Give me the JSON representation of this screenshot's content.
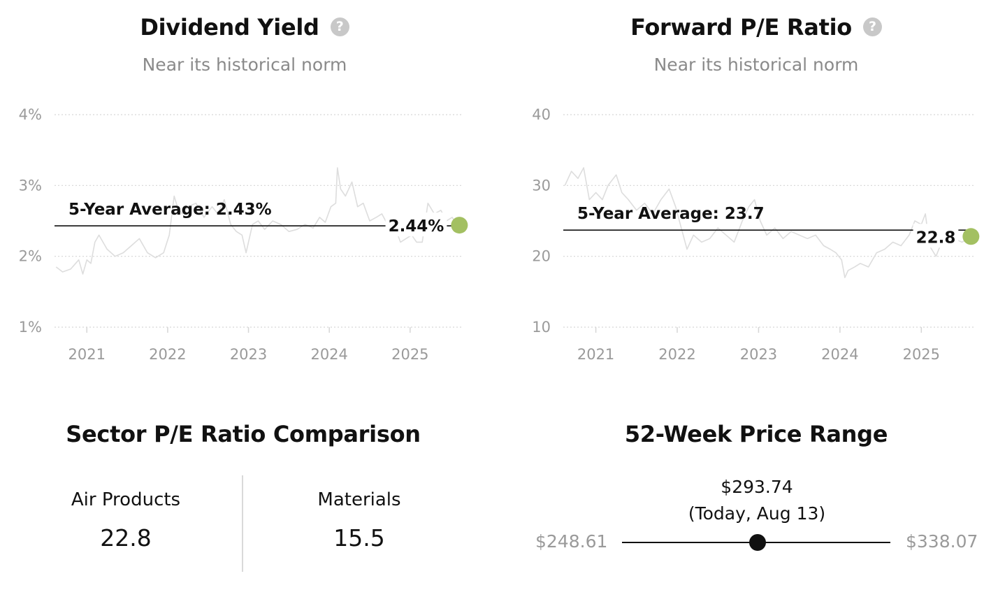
{
  "chart_data": [
    {
      "type": "line",
      "title": "Dividend Yield",
      "subtitle": "Near its historical norm",
      "y_ticks": [
        "1%",
        "2%",
        "3%",
        "4%"
      ],
      "ylim": [
        1,
        4
      ],
      "x_ticks": [
        "2021",
        "2022",
        "2023",
        "2024",
        "2025"
      ],
      "x_tick_values": [
        2021,
        2022,
        2023,
        2024,
        2025
      ],
      "xlim": [
        2020.6,
        2025.65
      ],
      "grid": true,
      "average": {
        "label": "5-Year Average: 2.43%",
        "value": 2.43
      },
      "current": {
        "label": "2.44%",
        "x": 2025.61,
        "value": 2.44
      },
      "series": [
        {
          "x": [
            2020.62,
            2020.7,
            2020.8,
            2020.9,
            2020.95,
            2021.0,
            2021.05,
            2021.1,
            2021.15,
            2021.25,
            2021.35,
            2021.45,
            2021.55,
            2021.65,
            2021.75,
            2021.85,
            2021.95,
            2022.02,
            2022.08,
            2022.12,
            2022.18,
            2022.25,
            2022.35,
            2022.45,
            2022.55,
            2022.62,
            2022.7,
            2022.78,
            2022.85,
            2022.92,
            2022.97,
            2023.05,
            2023.12,
            2023.2,
            2023.3,
            2023.4,
            2023.5,
            2023.6,
            2023.7,
            2023.8,
            2023.88,
            2023.95,
            2024.02,
            2024.08,
            2024.1,
            2024.14,
            2024.2,
            2024.28,
            2024.35,
            2024.42,
            2024.5,
            2024.58,
            2024.65,
            2024.72,
            2024.8,
            2024.88,
            2024.95,
            2025.02,
            2025.08,
            2025.15,
            2025.22,
            2025.3,
            2025.38,
            2025.45,
            2025.52,
            2025.58,
            2025.61
          ],
          "y": [
            1.85,
            1.78,
            1.82,
            1.95,
            1.75,
            1.95,
            1.9,
            2.2,
            2.3,
            2.1,
            2.0,
            2.05,
            2.15,
            2.25,
            2.05,
            1.98,
            2.05,
            2.3,
            2.85,
            2.7,
            2.6,
            2.7,
            2.75,
            2.55,
            2.7,
            2.6,
            2.8,
            2.45,
            2.35,
            2.3,
            2.05,
            2.45,
            2.5,
            2.38,
            2.5,
            2.45,
            2.35,
            2.38,
            2.45,
            2.4,
            2.55,
            2.48,
            2.7,
            2.75,
            3.25,
            2.95,
            2.85,
            3.05,
            2.7,
            2.75,
            2.5,
            2.55,
            2.6,
            2.45,
            2.45,
            2.2,
            2.25,
            2.3,
            2.2,
            2.2,
            2.75,
            2.6,
            2.65,
            2.5,
            2.55,
            2.45,
            2.44
          ]
        }
      ]
    },
    {
      "type": "line",
      "title": "Forward P/E Ratio",
      "subtitle": "Near its historical norm",
      "y_ticks": [
        "10",
        "20",
        "30",
        "40"
      ],
      "ylim": [
        10,
        40
      ],
      "x_ticks": [
        "2021",
        "2022",
        "2023",
        "2024",
        "2025"
      ],
      "x_tick_values": [
        2021,
        2022,
        2023,
        2024,
        2025
      ],
      "xlim": [
        2020.6,
        2025.65
      ],
      "grid": true,
      "average": {
        "label": "5-Year Average: 23.7",
        "value": 23.7
      },
      "current": {
        "label": "22.8",
        "x": 2025.61,
        "value": 22.8
      },
      "series": [
        {
          "x": [
            2020.62,
            2020.7,
            2020.78,
            2020.85,
            2020.92,
            2021.0,
            2021.08,
            2021.15,
            2021.25,
            2021.32,
            2021.4,
            2021.5,
            2021.6,
            2021.7,
            2021.8,
            2021.9,
            2021.98,
            2022.05,
            2022.12,
            2022.2,
            2022.3,
            2022.4,
            2022.5,
            2022.6,
            2022.7,
            2022.8,
            2022.88,
            2022.95,
            2023.02,
            2023.1,
            2023.2,
            2023.3,
            2023.4,
            2023.5,
            2023.6,
            2023.7,
            2023.8,
            2023.88,
            2023.95,
            2024.02,
            2024.06,
            2024.1,
            2024.18,
            2024.25,
            2024.35,
            2024.45,
            2024.55,
            2024.65,
            2024.75,
            2024.85,
            2024.92,
            2025.0,
            2025.05,
            2025.1,
            2025.18,
            2025.25,
            2025.32,
            2025.4,
            2025.5,
            2025.58,
            2025.61
          ],
          "y": [
            30,
            32,
            31,
            32.5,
            28,
            29,
            28,
            30,
            31.5,
            29,
            28,
            26.5,
            27.5,
            26,
            28,
            29.5,
            27,
            24,
            21,
            23,
            22,
            22.5,
            24,
            23,
            22,
            25,
            27,
            28,
            25,
            23,
            24,
            22.5,
            23.5,
            23,
            22.5,
            23,
            21.5,
            21,
            20.5,
            19.5,
            17,
            18,
            18.5,
            19,
            18.5,
            20.5,
            21,
            22,
            21.5,
            23,
            25,
            24.5,
            26,
            21.5,
            20,
            22,
            21.5,
            22.5,
            22,
            22.5,
            22.8
          ]
        }
      ]
    },
    {
      "type": "table",
      "title": "Sector P/E Ratio Comparison",
      "columns": [
        {
          "label": "Air Products",
          "value": "22.8"
        },
        {
          "label": "Materials",
          "value": "15.5"
        }
      ]
    },
    {
      "type": "range",
      "title": "52-Week Price Range",
      "current_price": "$293.74",
      "current_note": "(Today, Aug 13)",
      "low": "$248.61",
      "high": "$338.07",
      "low_value": 248.61,
      "high_value": 338.07,
      "current_value": 293.74
    }
  ],
  "colors": {
    "history_line": "#dddddd",
    "grid": "#d6d6d6",
    "average_line": "#111111",
    "current_dot": "#a3c062",
    "range_dot": "#111111"
  },
  "icons": {
    "info": "question-circle-icon",
    "info_glyph": "?"
  }
}
